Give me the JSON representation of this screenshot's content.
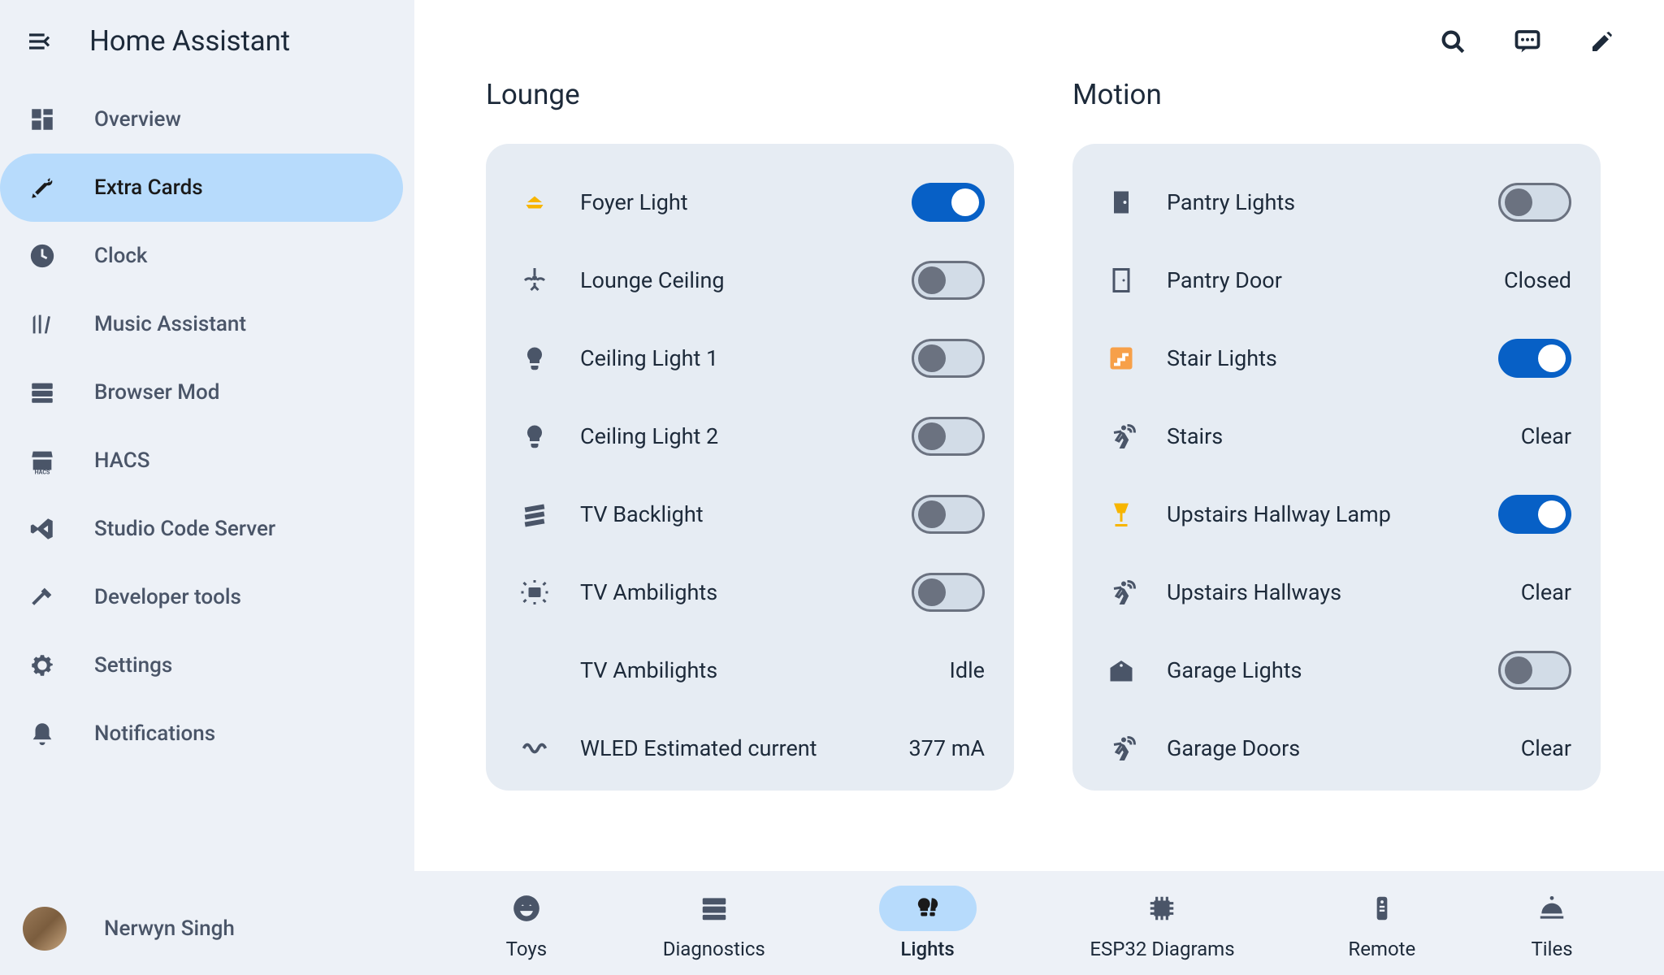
{
  "app": {
    "title": "Home Assistant"
  },
  "colors": {
    "accent": "#0760c6",
    "sidebar_bg": "#edf1f7",
    "card_bg": "#e6ecf3",
    "active_tab_bg": "#b7dbfc",
    "text_primary": "#1d2a3a",
    "text_secondary": "#4a5568",
    "icon_amber": "#f7b500",
    "icon_orange": "#f7a049",
    "toggle_off_bg": "#d2dce7",
    "toggle_off_border": "#6b7280"
  },
  "sidebar": {
    "items": [
      {
        "label": "Overview",
        "icon": "dashboard",
        "active": false
      },
      {
        "label": "Extra Cards",
        "icon": "tools",
        "active": true
      },
      {
        "label": "Clock",
        "icon": "clock",
        "active": false
      },
      {
        "label": "Music Assistant",
        "icon": "library",
        "active": false
      },
      {
        "label": "Browser Mod",
        "icon": "server",
        "active": false
      },
      {
        "label": "HACS",
        "icon": "store",
        "active": false
      },
      {
        "label": "Studio Code Server",
        "icon": "vscode",
        "active": false
      },
      {
        "label": "Developer tools",
        "icon": "hammer",
        "active": false
      },
      {
        "label": "Settings",
        "icon": "gear",
        "active": false
      },
      {
        "label": "Notifications",
        "icon": "bell",
        "active": false
      }
    ],
    "user": {
      "name": "Nerwyn Singh"
    }
  },
  "topbar": {
    "buttons": [
      {
        "name": "search-icon"
      },
      {
        "name": "chat-icon"
      },
      {
        "name": "edit-icon"
      }
    ]
  },
  "cards": [
    {
      "title": "Lounge",
      "rows": [
        {
          "icon": "ceiling-light",
          "color": "amber",
          "label": "Foyer Light",
          "control": "toggle",
          "state": "on"
        },
        {
          "icon": "ceiling-fan",
          "label": "Lounge Ceiling",
          "control": "toggle",
          "state": "off"
        },
        {
          "icon": "bulb",
          "label": "Ceiling Light 1",
          "control": "toggle",
          "state": "off"
        },
        {
          "icon": "bulb",
          "label": "Ceiling Light 2",
          "control": "toggle",
          "state": "off"
        },
        {
          "icon": "filmstrip",
          "label": "TV Backlight",
          "control": "toggle",
          "state": "off"
        },
        {
          "icon": "ambilight",
          "label": "TV Ambilights",
          "control": "toggle",
          "state": "off"
        },
        {
          "icon": "",
          "label": "TV Ambilights",
          "control": "value",
          "value": "Idle"
        },
        {
          "icon": "wave",
          "label": "WLED Estimated current",
          "control": "value",
          "value": "377 mA"
        }
      ]
    },
    {
      "title": "Motion",
      "rows": [
        {
          "icon": "door-closed",
          "label": "Pantry Lights",
          "control": "toggle",
          "state": "off"
        },
        {
          "icon": "door-open",
          "label": "Pantry Door",
          "control": "value",
          "value": "Closed"
        },
        {
          "icon": "stairs",
          "color": "orange",
          "label": "Stair Lights",
          "control": "toggle",
          "state": "on"
        },
        {
          "icon": "motion",
          "label": "Stairs",
          "control": "value",
          "value": "Clear"
        },
        {
          "icon": "lamp",
          "color": "amber",
          "label": "Upstairs Hallway Lamp",
          "control": "toggle",
          "state": "on"
        },
        {
          "icon": "motion",
          "label": "Upstairs Hallways",
          "control": "value",
          "value": "Clear"
        },
        {
          "icon": "garage",
          "label": "Garage Lights",
          "control": "toggle",
          "state": "off"
        },
        {
          "icon": "motion",
          "label": "Garage Doors",
          "control": "value",
          "value": "Clear"
        }
      ]
    }
  ],
  "tabs": [
    {
      "label": "Toys",
      "icon": "smiley",
      "active": false
    },
    {
      "label": "Diagnostics",
      "icon": "server",
      "active": false
    },
    {
      "label": "Lights",
      "icon": "bulbs",
      "active": true
    },
    {
      "label": "ESP32 Diagrams",
      "icon": "chip",
      "active": false
    },
    {
      "label": "Remote",
      "icon": "remote",
      "active": false
    },
    {
      "label": "Tiles",
      "icon": "dome",
      "active": false
    }
  ]
}
